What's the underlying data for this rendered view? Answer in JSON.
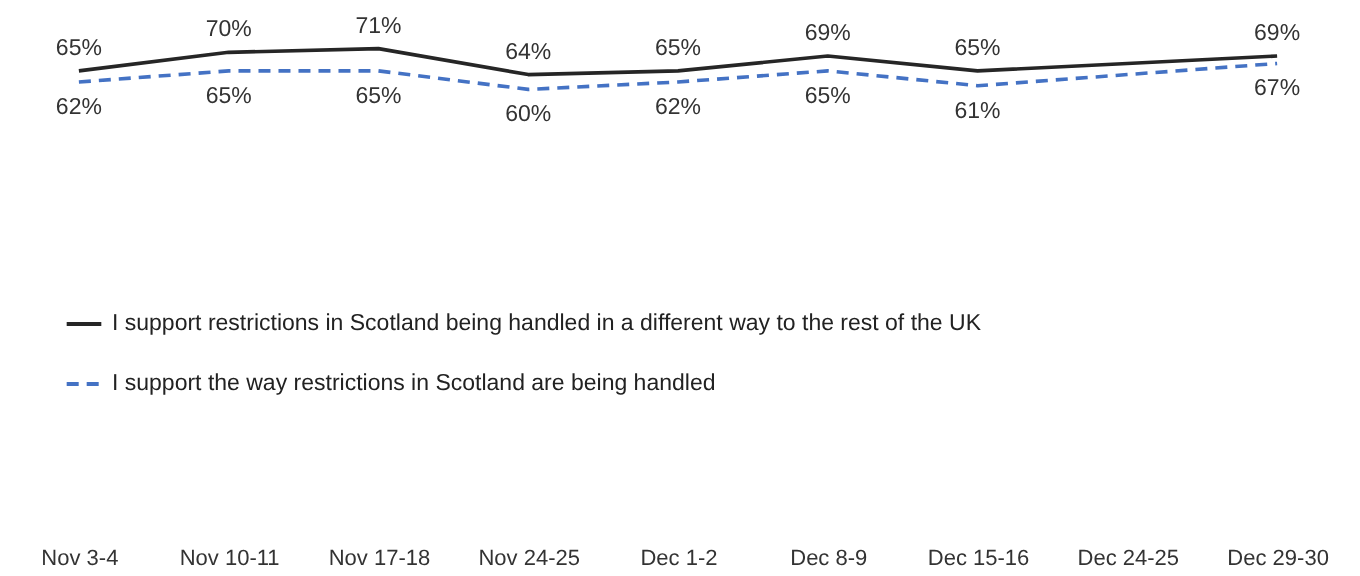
{
  "chart_data": {
    "type": "line",
    "categories": [
      "Nov 3-4",
      "Nov 10-11",
      "Nov 17-18",
      "Nov 24-25",
      "Dec 1-2",
      "Dec 8-9",
      "Dec 15-16",
      "Dec 24-25",
      "Dec 29-30"
    ],
    "series": [
      {
        "name": "I support restrictions in Scotland being handled in a different way to the rest of the UK",
        "color": "#262626",
        "line_style": "solid",
        "values": [
          65,
          70,
          71,
          64,
          65,
          69,
          65,
          67,
          69
        ],
        "value_labels": [
          "65%",
          "70%",
          "71%",
          "64%",
          "65%",
          "69%",
          "65%",
          null,
          "69%"
        ]
      },
      {
        "name": "I support the way restrictions in Scotland are being handled",
        "color": "#4472c4",
        "line_style": "dashed",
        "values": [
          62,
          65,
          65,
          60,
          62,
          65,
          61,
          64,
          67
        ],
        "value_labels": [
          "62%",
          "65%",
          "65%",
          "60%",
          "62%",
          "65%",
          "61%",
          null,
          "67%"
        ]
      }
    ],
    "legend": "bottom",
    "grid": false
  }
}
